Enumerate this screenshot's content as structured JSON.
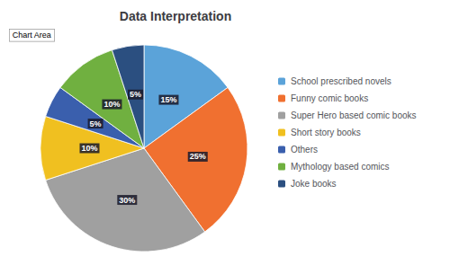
{
  "chart_data": {
    "type": "pie",
    "title": "Data Interpretation",
    "annotations": [
      "Chart Area"
    ],
    "categories": [
      "School prescribed novels",
      "Funny comic books",
      "Super Hero based comic books",
      "Short story books",
      "Others",
      "Mythology based comics",
      "Joke books"
    ],
    "values": [
      15,
      25,
      30,
      10,
      5,
      10,
      5
    ],
    "value_labels": [
      "15%",
      "25%",
      "30%",
      "10%",
      "5%",
      "10%",
      "5%"
    ],
    "colors": [
      "#5ba3d9",
      "#f07030",
      "#a0a0a0",
      "#f0c020",
      "#3a5fad",
      "#70b040",
      "#2b4f80"
    ],
    "data_labels": true,
    "legend": "right"
  }
}
